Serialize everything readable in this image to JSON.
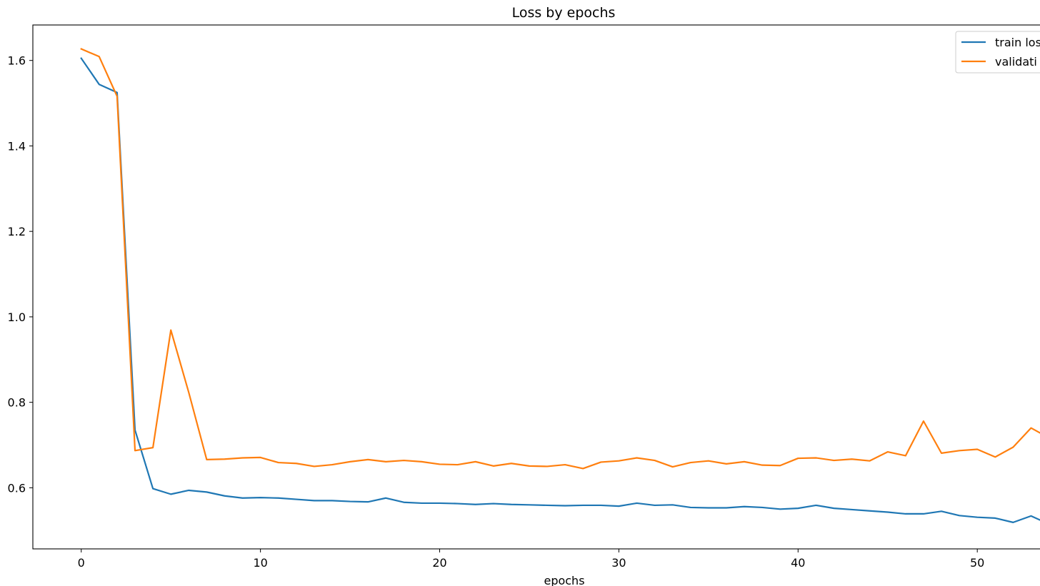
{
  "chart_data": {
    "type": "line",
    "title": "Loss by epochs",
    "xlabel": "epochs",
    "ylabel": "",
    "xlim": [
      -2.7,
      53.5
    ],
    "ylim": [
      0.457,
      1.683
    ],
    "x_ticks": [
      0,
      10,
      20,
      30,
      40,
      50
    ],
    "y_ticks": [
      0.6,
      0.8,
      1.0,
      1.2,
      1.4,
      1.6
    ],
    "x_tick_labels": [
      "0",
      "10",
      "20",
      "30",
      "40",
      "50"
    ],
    "y_tick_labels": [
      "0.6",
      "0.8",
      "1.0",
      "1.2",
      "1.4",
      "1.6"
    ],
    "grid": false,
    "legend_position": "top-right",
    "x": [
      0,
      1,
      2,
      3,
      4,
      5,
      6,
      7,
      8,
      9,
      10,
      11,
      12,
      13,
      14,
      15,
      16,
      17,
      18,
      19,
      20,
      21,
      22,
      23,
      24,
      25,
      26,
      27,
      28,
      29,
      30,
      31,
      32,
      33,
      34,
      35,
      36,
      37,
      38,
      39,
      40,
      41,
      42,
      43,
      44,
      45,
      46,
      47,
      48,
      49,
      50,
      51,
      52,
      53,
      54
    ],
    "series": [
      {
        "name": "train los",
        "color": "#1f77b4",
        "values": [
          1.605,
          1.544,
          1.525,
          0.735,
          0.598,
          0.585,
          0.594,
          0.59,
          0.581,
          0.576,
          0.577,
          0.576,
          0.573,
          0.57,
          0.57,
          0.568,
          0.567,
          0.576,
          0.566,
          0.564,
          0.564,
          0.563,
          0.561,
          0.563,
          0.561,
          0.56,
          0.559,
          0.558,
          0.559,
          0.559,
          0.557,
          0.564,
          0.559,
          0.56,
          0.554,
          0.553,
          0.553,
          0.556,
          0.554,
          0.55,
          0.552,
          0.559,
          0.552,
          0.549,
          0.546,
          0.543,
          0.539,
          0.539,
          0.545,
          0.535,
          0.531,
          0.529,
          0.519,
          0.534,
          0.515
        ]
      },
      {
        "name": "validati",
        "color": "#ff7f0e",
        "values": [
          1.627,
          1.609,
          1.516,
          0.687,
          0.694,
          0.969,
          0.823,
          0.666,
          0.667,
          0.67,
          0.671,
          0.659,
          0.657,
          0.65,
          0.654,
          0.661,
          0.666,
          0.661,
          0.664,
          0.661,
          0.655,
          0.654,
          0.661,
          0.651,
          0.657,
          0.651,
          0.65,
          0.654,
          0.645,
          0.66,
          0.663,
          0.67,
          0.664,
          0.649,
          0.659,
          0.663,
          0.656,
          0.661,
          0.653,
          0.652,
          0.669,
          0.67,
          0.664,
          0.667,
          0.663,
          0.684,
          0.675,
          0.756,
          0.681,
          0.687,
          0.69,
          0.672,
          0.695,
          0.74,
          0.717
        ]
      }
    ]
  }
}
